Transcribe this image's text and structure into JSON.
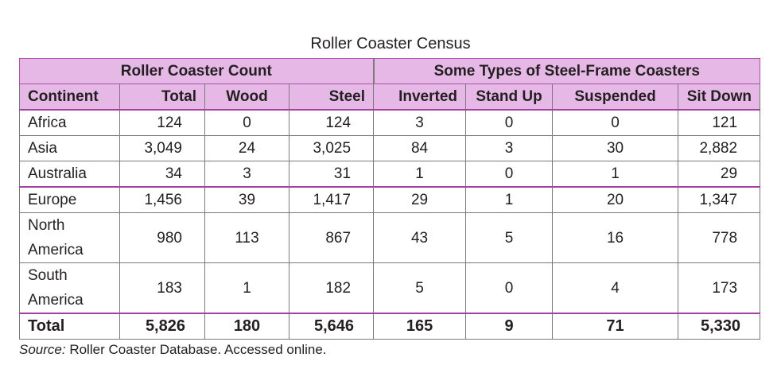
{
  "title": "Roller Coaster Census",
  "chart_data": {
    "type": "table",
    "title": "Roller Coaster Census",
    "group_headers": [
      "Roller Coaster Count",
      "Some Types of Steel-Frame Coasters"
    ],
    "columns": [
      "Continent",
      "Total",
      "Wood",
      "Steel",
      "Inverted",
      "Stand Up",
      "Suspended",
      "Sit Down"
    ],
    "rows": [
      [
        "Africa",
        "124",
        "0",
        "124",
        "3",
        "0",
        "0",
        "121"
      ],
      [
        "Asia",
        "3,049",
        "24",
        "3,025",
        "84",
        "3",
        "30",
        "2,882"
      ],
      [
        "Australia",
        "34",
        "3",
        "31",
        "1",
        "0",
        "1",
        "29"
      ],
      [
        "Europe",
        "1,456",
        "39",
        "1,417",
        "29",
        "1",
        "20",
        "1,347"
      ],
      [
        "North America",
        "980",
        "113",
        "867",
        "43",
        "5",
        "16",
        "778"
      ],
      [
        "South America",
        "183",
        "1",
        "182",
        "5",
        "0",
        "4",
        "173"
      ]
    ],
    "total": [
      "Total",
      "5,826",
      "180",
      "5,646",
      "165",
      "9",
      "71",
      "5,330"
    ]
  },
  "source_label": "Source:",
  "source_text": "Roller Coaster Database. Accessed online."
}
